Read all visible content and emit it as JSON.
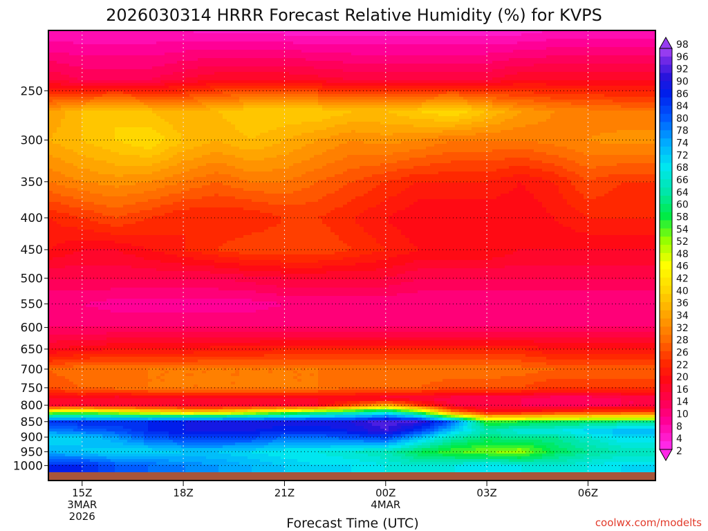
{
  "chart_data": {
    "type": "heatmap",
    "title": "2026030314 HRRR Forecast Relative Humidity (%) for KVPS",
    "xlabel": "Forecast Time (UTC)",
    "ylabel": "",
    "credit": "coolwx.com/modelts",
    "x_ticks": [
      {
        "hour": 15,
        "label": "15Z",
        "sub1": "3MAR",
        "sub2": "2026"
      },
      {
        "hour": 18,
        "label": "18Z",
        "sub1": "",
        "sub2": ""
      },
      {
        "hour": 21,
        "label": "21Z",
        "sub1": "",
        "sub2": ""
      },
      {
        "hour": 24,
        "label": "00Z",
        "sub1": "4MAR",
        "sub2": ""
      },
      {
        "hour": 27,
        "label": "03Z",
        "sub1": "",
        "sub2": ""
      },
      {
        "hour": 30,
        "label": "06Z",
        "sub1": "",
        "sub2": ""
      }
    ],
    "xlim_hours": [
      14,
      32
    ],
    "y_ticks": [
      250,
      300,
      350,
      400,
      450,
      500,
      550,
      600,
      650,
      700,
      750,
      800,
      850,
      900,
      950,
      1000
    ],
    "ylim_hPa": [
      200,
      1025
    ],
    "y_scale": "log-pressure",
    "grid": true,
    "colorbar_levels": [
      2,
      4,
      6,
      8,
      10,
      12,
      14,
      16,
      18,
      20,
      22,
      24,
      26,
      28,
      30,
      32,
      34,
      36,
      38,
      40,
      42,
      44,
      46,
      48,
      50,
      52,
      54,
      56,
      58,
      60,
      62,
      64,
      66,
      68,
      70,
      72,
      74,
      76,
      78,
      80,
      82,
      84,
      86,
      88,
      90,
      92,
      94,
      96,
      98
    ],
    "colorbar_labels": [
      98,
      96,
      92,
      90,
      86,
      84,
      80,
      78,
      74,
      72,
      68,
      66,
      64,
      60,
      58,
      54,
      52,
      48,
      46,
      42,
      40,
      36,
      34,
      32,
      28,
      26,
      22,
      20,
      16,
      14,
      10,
      8,
      4,
      2
    ],
    "rh_hours": [
      14,
      15,
      16,
      17,
      18,
      19,
      20,
      21,
      22,
      23,
      24,
      25,
      26,
      27,
      28,
      29,
      30,
      31,
      32
    ],
    "rh_levels_hPa": [
      200,
      240,
      270,
      300,
      350,
      400,
      450,
      500,
      550,
      600,
      650,
      700,
      750,
      780,
      800,
      820,
      850,
      880,
      900,
      950,
      1000,
      1025
    ],
    "rh_rows": [
      [
        6,
        6,
        6,
        6,
        6,
        5,
        5,
        5,
        5,
        5,
        5,
        5,
        5,
        5,
        5,
        6,
        6,
        6,
        6
      ],
      [
        16,
        14,
        14,
        14,
        16,
        18,
        18,
        18,
        17,
        16,
        16,
        16,
        16,
        16,
        18,
        18,
        18,
        18,
        18
      ],
      [
        34,
        38,
        40,
        38,
        36,
        38,
        40,
        40,
        40,
        38,
        38,
        40,
        42,
        38,
        34,
        32,
        31,
        30,
        30
      ],
      [
        36,
        38,
        40,
        42,
        38,
        36,
        38,
        36,
        34,
        32,
        33,
        32,
        30,
        30,
        30,
        31,
        32,
        33,
        33
      ],
      [
        30,
        32,
        33,
        32,
        30,
        28,
        30,
        30,
        28,
        26,
        24,
        22,
        22,
        22,
        20,
        22,
        26,
        24,
        24
      ],
      [
        22,
        24,
        26,
        24,
        22,
        22,
        22,
        24,
        24,
        22,
        20,
        18,
        18,
        18,
        18,
        20,
        22,
        22,
        22
      ],
      [
        20,
        18,
        18,
        20,
        22,
        24,
        26,
        26,
        26,
        24,
        22,
        20,
        20,
        20,
        18,
        18,
        18,
        18,
        18
      ],
      [
        14,
        14,
        14,
        14,
        14,
        14,
        15,
        16,
        16,
        16,
        16,
        14,
        14,
        14,
        14,
        14,
        14,
        14,
        14
      ],
      [
        10,
        10,
        9,
        9,
        9,
        9,
        9,
        10,
        10,
        10,
        10,
        10,
        10,
        10,
        10,
        10,
        10,
        10,
        10
      ],
      [
        12,
        12,
        12,
        12,
        12,
        12,
        12,
        12,
        12,
        12,
        12,
        12,
        12,
        12,
        12,
        12,
        12,
        12,
        12
      ],
      [
        18,
        19,
        20,
        20,
        20,
        21,
        21,
        22,
        22,
        22,
        22,
        22,
        22,
        22,
        22,
        20,
        20,
        20,
        20
      ],
      [
        28,
        30,
        30,
        30,
        30,
        30,
        30,
        30,
        30,
        30,
        30,
        30,
        30,
        30,
        29,
        28,
        28,
        28,
        28
      ],
      [
        26,
        28,
        29,
        30,
        30,
        30,
        30,
        30,
        30,
        28,
        28,
        28,
        26,
        26,
        26,
        24,
        24,
        24,
        24
      ],
      [
        18,
        18,
        16,
        18,
        18,
        18,
        18,
        18,
        18,
        18,
        16,
        16,
        14,
        14,
        14,
        12,
        12,
        14,
        14
      ],
      [
        16,
        16,
        16,
        16,
        16,
        16,
        16,
        16,
        18,
        26,
        36,
        24,
        16,
        14,
        14,
        14,
        14,
        14,
        14
      ],
      [
        50,
        52,
        48,
        44,
        40,
        40,
        46,
        52,
        58,
        62,
        68,
        56,
        30,
        20,
        20,
        22,
        24,
        24,
        24
      ],
      [
        86,
        88,
        88,
        88,
        90,
        92,
        92,
        92,
        92,
        92,
        96,
        94,
        82,
        56,
        58,
        60,
        60,
        62,
        62
      ],
      [
        80,
        82,
        84,
        88,
        90,
        90,
        90,
        88,
        88,
        90,
        94,
        86,
        74,
        66,
        70,
        70,
        74,
        76,
        76
      ],
      [
        72,
        74,
        78,
        84,
        86,
        86,
        86,
        82,
        82,
        84,
        86,
        76,
        66,
        62,
        64,
        64,
        68,
        72,
        72
      ],
      [
        76,
        74,
        72,
        72,
        74,
        74,
        72,
        70,
        70,
        68,
        66,
        60,
        56,
        54,
        52,
        60,
        64,
        66,
        66
      ],
      [
        88,
        88,
        84,
        82,
        80,
        78,
        76,
        74,
        72,
        72,
        70,
        68,
        70,
        72,
        70,
        68,
        70,
        72,
        72
      ],
      [
        88,
        88,
        84,
        82,
        80,
        78,
        76,
        74,
        72,
        72,
        70,
        68,
        70,
        72,
        70,
        68,
        70,
        72,
        72
      ]
    ]
  }
}
